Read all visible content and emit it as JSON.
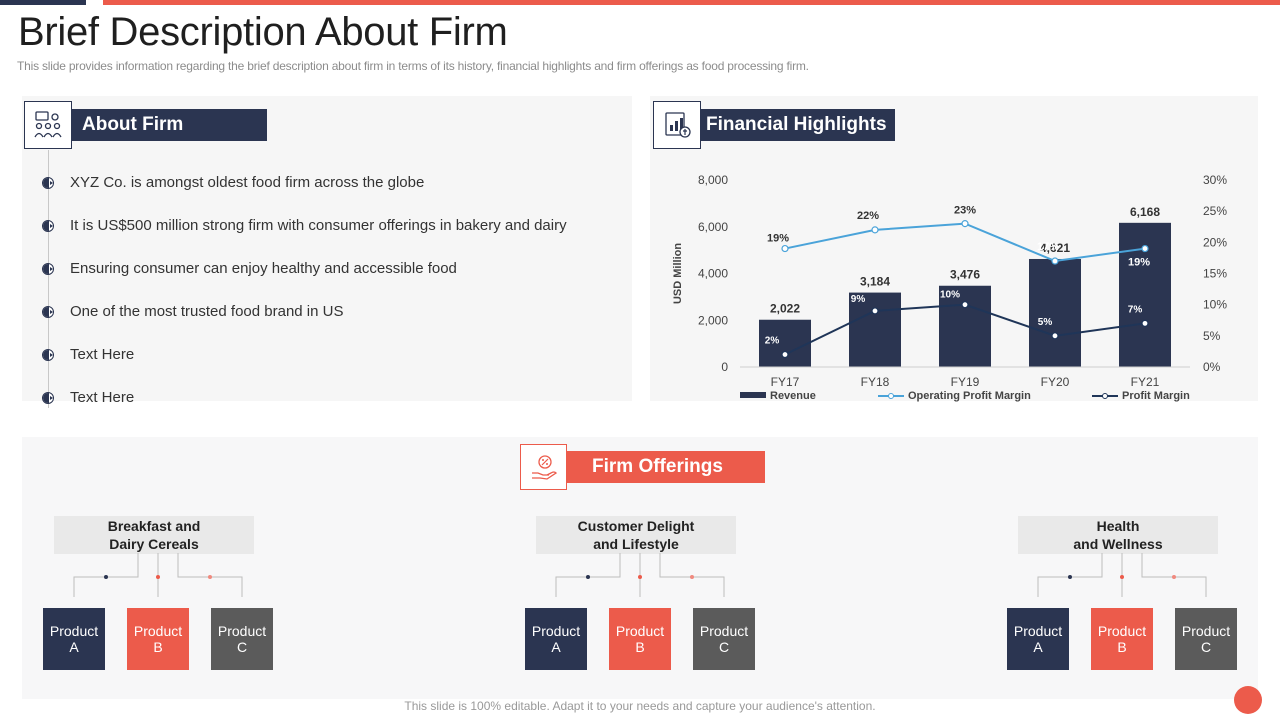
{
  "slide": {
    "title": "Brief Description About Firm",
    "subtitle": "This slide provides information regarding the brief description about firm in terms of its history, financial highlights and firm offerings as food processing firm.",
    "footer": "This slide is 100% editable. Adapt it to your needs and capture your audience's attention."
  },
  "about": {
    "heading": "About Firm",
    "icon": "presenter-team-icon",
    "items": [
      "XYZ  Co. is amongst oldest food firm across the globe",
      "It is US$500 million strong firm with consumer offerings in bakery and dairy",
      "Ensuring consumer can enjoy healthy and accessible food",
      "One of the most trusted food brand in US",
      "Text Here",
      "Text Here"
    ]
  },
  "financial": {
    "heading": "Financial Highlights",
    "icon": "financial-report-icon"
  },
  "chart_data": {
    "type": "bar",
    "categories": [
      "FY17",
      "FY18",
      "FY19",
      "FY20",
      "FY21"
    ],
    "series": [
      {
        "name": "Revenue",
        "type": "bar",
        "axis": "left",
        "values": [
          2022,
          3184,
          3476,
          4621,
          6168
        ],
        "labels": [
          "2,022",
          "3,184",
          "3,476",
          "4,621",
          "6,168"
        ],
        "color": "#2b3551"
      },
      {
        "name": "Operating Profit Margin",
        "type": "line",
        "axis": "right",
        "values": [
          19,
          22,
          23,
          17,
          19
        ],
        "labels": [
          "19%",
          "22%",
          "23%",
          "17%",
          "19%"
        ],
        "color": "#4aa3d9"
      },
      {
        "name": "Profit Margin",
        "type": "line",
        "axis": "right",
        "values": [
          2,
          9,
          10,
          5,
          7
        ],
        "labels": [
          "2%",
          "9%",
          "10%",
          "5%",
          "7%"
        ],
        "color": "#1f3558"
      }
    ],
    "ylabel": "USD Million",
    "ylim": [
      0,
      8000
    ],
    "yticks": [
      "0",
      "2,000",
      "4,000",
      "6,000",
      "8,000"
    ],
    "y2lim": [
      0,
      30
    ],
    "y2ticks": [
      "0%",
      "5%",
      "10%",
      "15%",
      "20%",
      "25%",
      "30%"
    ],
    "legend": "bottom",
    "grid": false
  },
  "offerings": {
    "heading": "Firm Offerings",
    "icon": "percent-hand-icon",
    "groups": [
      {
        "title_line1": "Breakfast and",
        "title_line2": "Dairy Cereals",
        "products": [
          {
            "line1": "Product",
            "line2": "A"
          },
          {
            "line1": "Product",
            "line2": "B"
          },
          {
            "line1": "Product",
            "line2": "C"
          }
        ]
      },
      {
        "title_line1": "Customer Delight",
        "title_line2": "and Lifestyle",
        "products": [
          {
            "line1": "Product",
            "line2": "A"
          },
          {
            "line1": "Product",
            "line2": "B"
          },
          {
            "line1": "Product",
            "line2": "C"
          }
        ]
      },
      {
        "title_line1": "Health",
        "title_line2": "and Wellness",
        "products": [
          {
            "line1": "Product",
            "line2": "A"
          },
          {
            "line1": "Product",
            "line2": "B"
          },
          {
            "line1": "Product",
            "line2": "C"
          }
        ]
      }
    ]
  },
  "colors": {
    "navy": "#2b3551",
    "accent": "#ec5b4b",
    "grey": "#5b5b5b",
    "line_blue": "#4aa3d9"
  }
}
